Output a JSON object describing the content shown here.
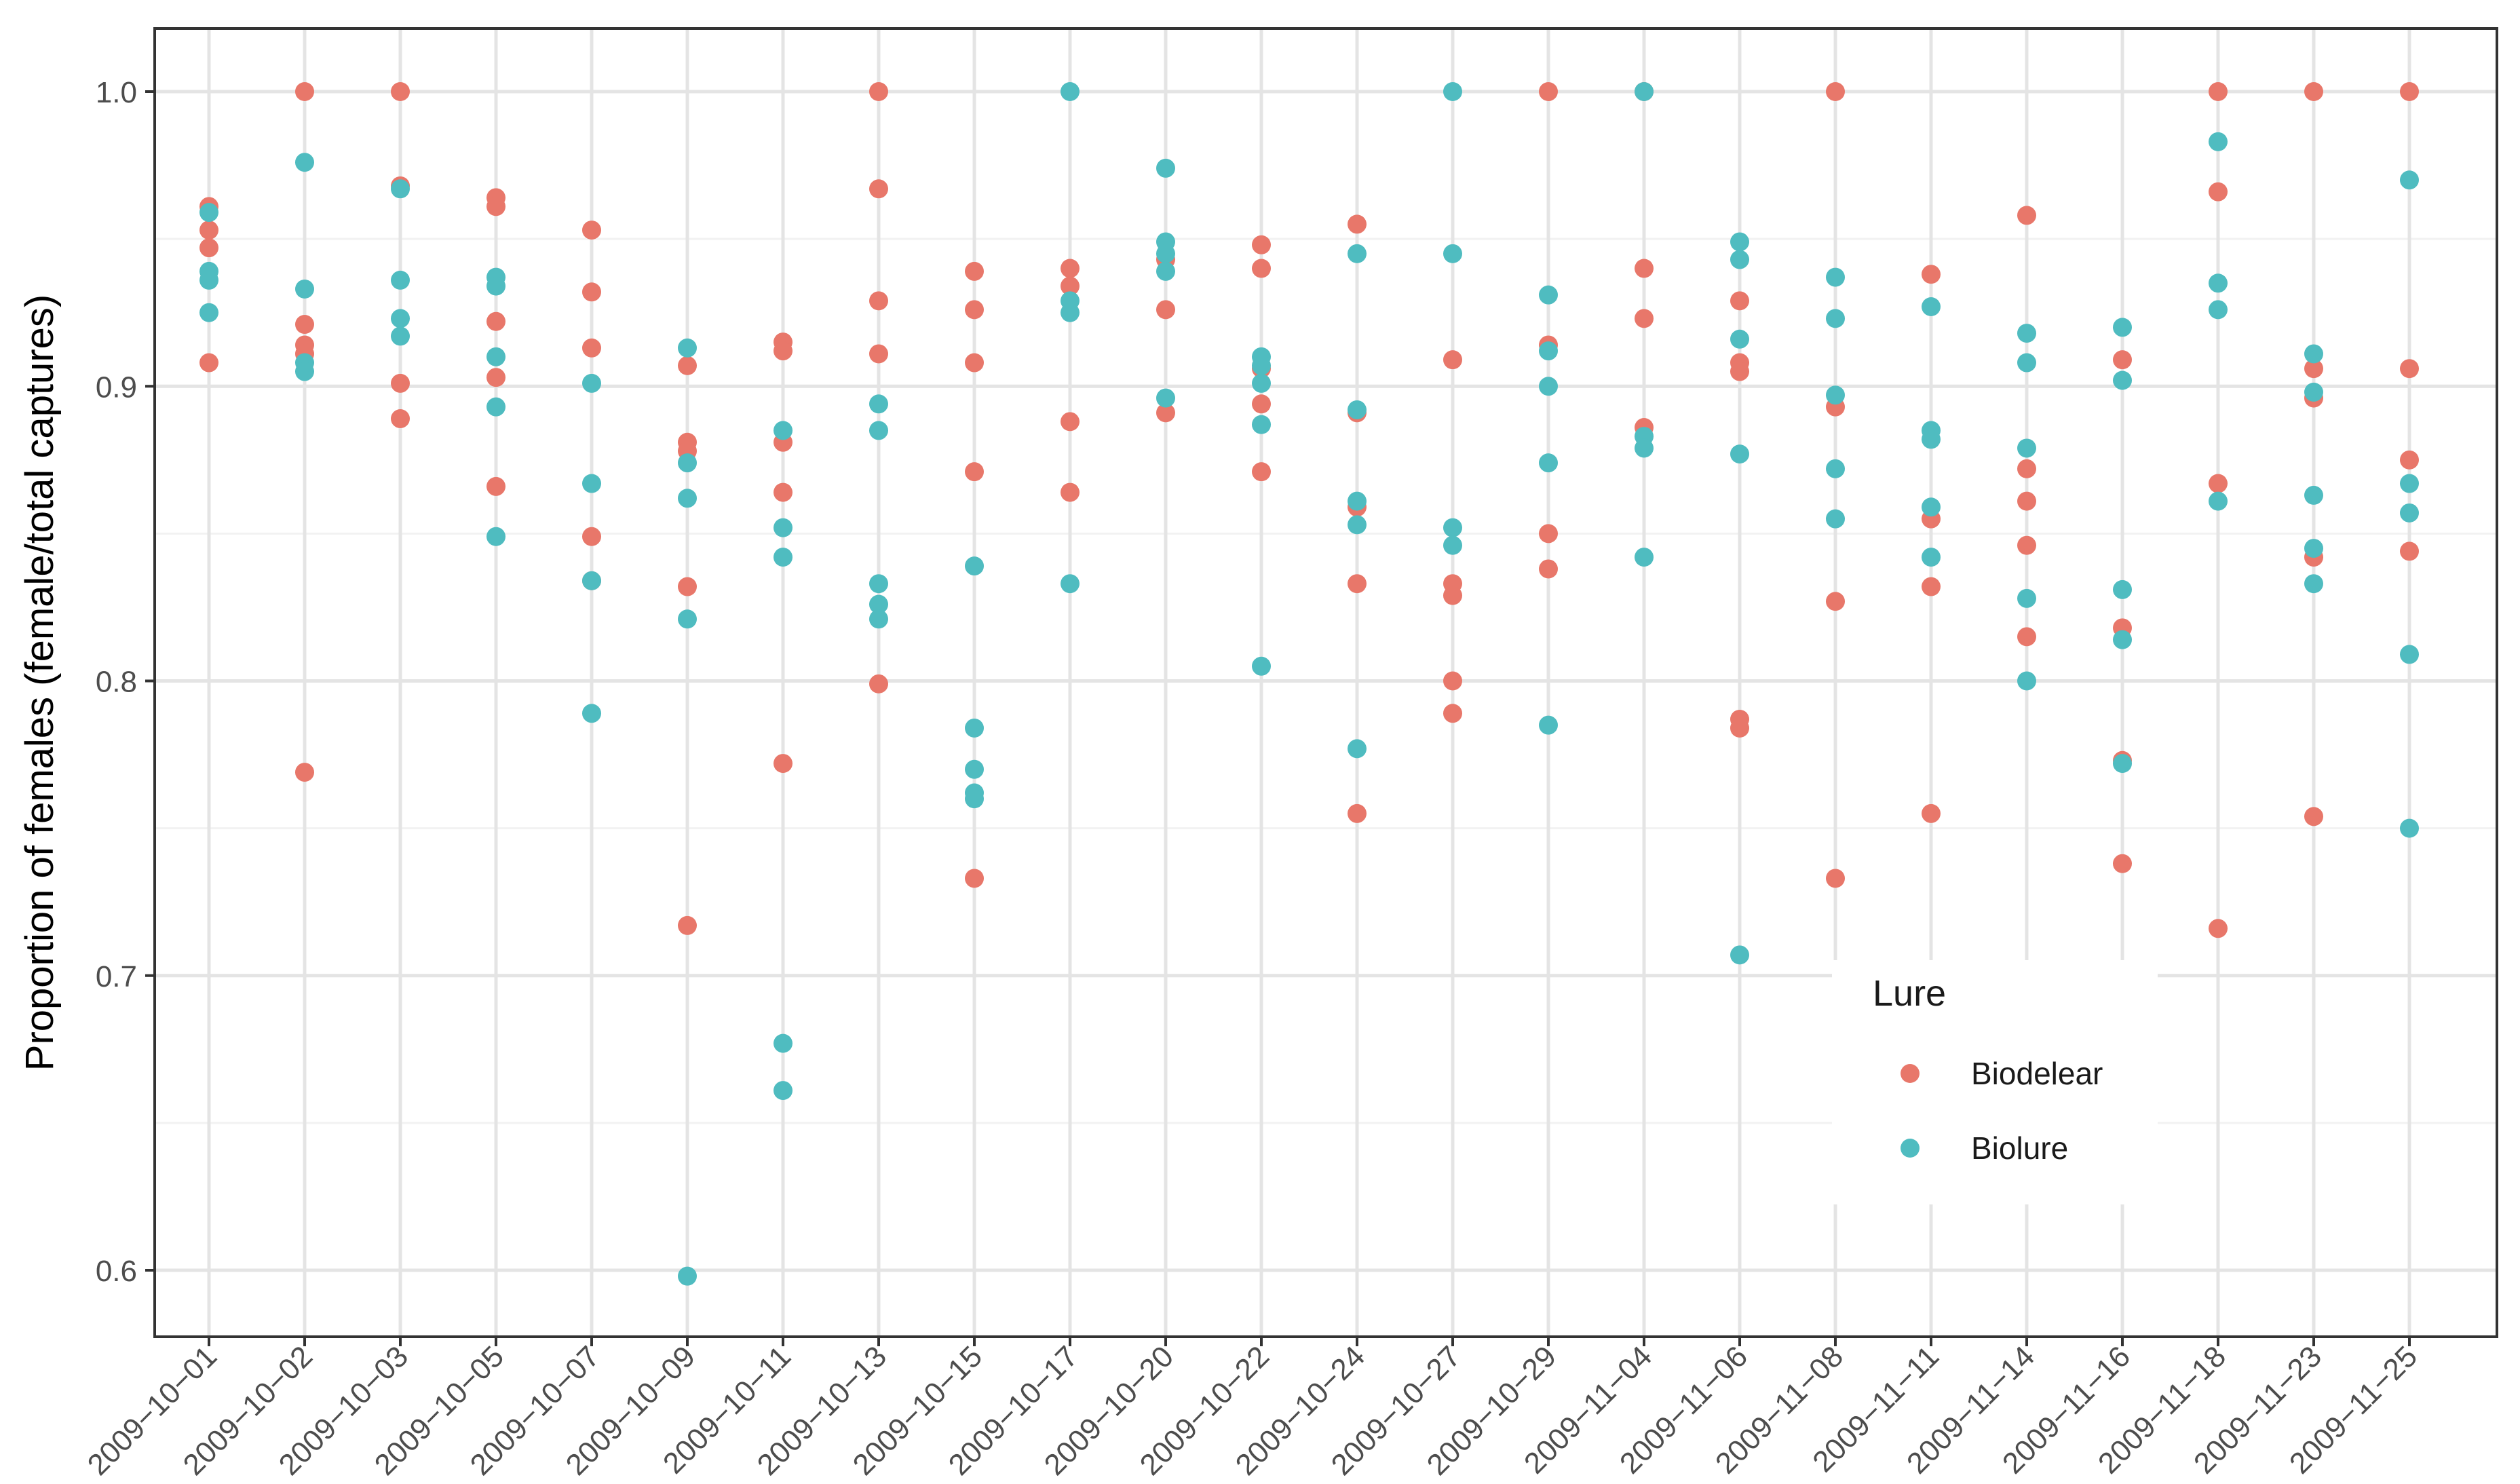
{
  "chart_data": {
    "type": "scatter",
    "title": "",
    "xlabel": "",
    "ylabel": "Proportion of females (female/total captures)",
    "ylim": [
      0.58,
      1.02
    ],
    "y_ticks": [
      0.6,
      0.7,
      0.8,
      0.9,
      1.0
    ],
    "y_tick_labels": [
      "0.6",
      "0.7",
      "0.8",
      "0.9",
      "1.0"
    ],
    "grid": true,
    "legend": {
      "title": "Lure",
      "position": "bottom-right (inside)",
      "entries": [
        {
          "name": "Biodelear",
          "color": "#E8776A"
        },
        {
          "name": "Biolure",
          "color": "#4FBCC0"
        }
      ]
    },
    "categories": [
      "2009-10-01",
      "2009-10-02",
      "2009-10-03",
      "2009-10-05",
      "2009-10-07",
      "2009-10-09",
      "2009-10-11",
      "2009-10-13",
      "2009-10-15",
      "2009-10-17",
      "2009-10-20",
      "2009-10-22",
      "2009-10-24",
      "2009-10-27",
      "2009-10-29",
      "2009-11-04",
      "2009-11-06",
      "2009-11-08",
      "2009-11-11",
      "2009-11-14",
      "2009-11-16",
      "2009-11-18",
      "2009-11-23",
      "2009-11-25"
    ],
    "category_labels": [
      "2009−10−01",
      "2009−10−02",
      "2009−10−03",
      "2009−10−05",
      "2009−10−07",
      "2009−10−09",
      "2009−10−11",
      "2009−10−13",
      "2009−10−15",
      "2009−10−17",
      "2009−10−20",
      "2009−10−22",
      "2009−10−24",
      "2009−10−27",
      "2009−10−29",
      "2009−11−04",
      "2009−11−06",
      "2009−11−08",
      "2009−11−11",
      "2009−11−14",
      "2009−11−16",
      "2009−11−18",
      "2009−11−23",
      "2009−11−25"
    ],
    "series": [
      {
        "name": "Biodelear",
        "color": "#E8776A",
        "values": [
          [
            0.961,
            0.953,
            0.947,
            0.908
          ],
          [
            1.0,
            0.921,
            0.914,
            0.911,
            0.769
          ],
          [
            1.0,
            0.968,
            0.901,
            0.889
          ],
          [
            0.964,
            0.961,
            0.922,
            0.903,
            0.866
          ],
          [
            0.953,
            0.932,
            0.913,
            0.849,
            0.834
          ],
          [
            0.907,
            0.881,
            0.878,
            0.832,
            0.717
          ],
          [
            0.915,
            0.912,
            0.881,
            0.864,
            0.772
          ],
          [
            1.0,
            0.967,
            0.929,
            0.911,
            0.799
          ],
          [
            0.939,
            0.926,
            0.908,
            0.871,
            0.733
          ],
          [
            0.94,
            0.934,
            0.888,
            0.864
          ],
          [
            0.943,
            0.926,
            0.891
          ],
          [
            0.948,
            0.94,
            0.906,
            0.894,
            0.871
          ],
          [
            0.955,
            0.891,
            0.859,
            0.833,
            0.755
          ],
          [
            0.909,
            0.833,
            0.829,
            0.8,
            0.789
          ],
          [
            1.0,
            0.914,
            0.85,
            0.838
          ],
          [
            1.0,
            0.94,
            0.923,
            0.886
          ],
          [
            0.929,
            0.908,
            0.905,
            0.787,
            0.784
          ],
          [
            1.0,
            0.893,
            0.827,
            0.733
          ],
          [
            0.938,
            0.855,
            0.832,
            0.755
          ],
          [
            0.958,
            0.872,
            0.861,
            0.846,
            0.815
          ],
          [
            0.909,
            0.818,
            0.773,
            0.738
          ],
          [
            1.0,
            0.966,
            0.867,
            0.716
          ],
          [
            1.0,
            0.906,
            0.896,
            0.842,
            0.754
          ],
          [
            1.0,
            0.906,
            0.875,
            0.844
          ]
        ]
      },
      {
        "name": "Biolure",
        "color": "#4FBCC0",
        "values": [
          [
            0.959,
            0.939,
            0.936,
            0.925
          ],
          [
            0.976,
            0.933,
            0.908,
            0.905
          ],
          [
            0.967,
            0.936,
            0.923,
            0.917
          ],
          [
            0.937,
            0.934,
            0.91,
            0.893,
            0.849
          ],
          [
            0.901,
            0.867,
            0.834,
            0.789
          ],
          [
            0.913,
            0.874,
            0.862,
            0.821,
            0.598
          ],
          [
            0.885,
            0.852,
            0.842,
            0.677,
            0.661
          ],
          [
            0.894,
            0.885,
            0.833,
            0.826,
            0.821
          ],
          [
            0.839,
            0.784,
            0.77,
            0.762,
            0.76
          ],
          [
            1.0,
            0.929,
            0.925,
            0.833
          ],
          [
            0.974,
            0.949,
            0.945,
            0.939,
            0.896
          ],
          [
            0.91,
            0.907,
            0.901,
            0.887,
            0.805
          ],
          [
            0.945,
            0.892,
            0.861,
            0.853,
            0.777
          ],
          [
            1.0,
            0.945,
            0.852,
            0.846
          ],
          [
            0.931,
            0.912,
            0.9,
            0.874,
            0.785
          ],
          [
            1.0,
            0.883,
            0.879,
            0.842
          ],
          [
            0.949,
            0.943,
            0.916,
            0.877,
            0.707
          ],
          [
            0.937,
            0.923,
            0.897,
            0.872,
            0.855
          ],
          [
            0.927,
            0.885,
            0.882,
            0.859,
            0.842
          ],
          [
            0.918,
            0.908,
            0.879,
            0.828,
            0.8
          ],
          [
            0.92,
            0.902,
            0.831,
            0.814,
            0.772
          ],
          [
            0.983,
            0.935,
            0.926,
            0.861
          ],
          [
            0.911,
            0.898,
            0.863,
            0.845,
            0.833
          ],
          [
            0.97,
            0.867,
            0.857,
            0.809,
            0.75
          ]
        ]
      }
    ]
  }
}
